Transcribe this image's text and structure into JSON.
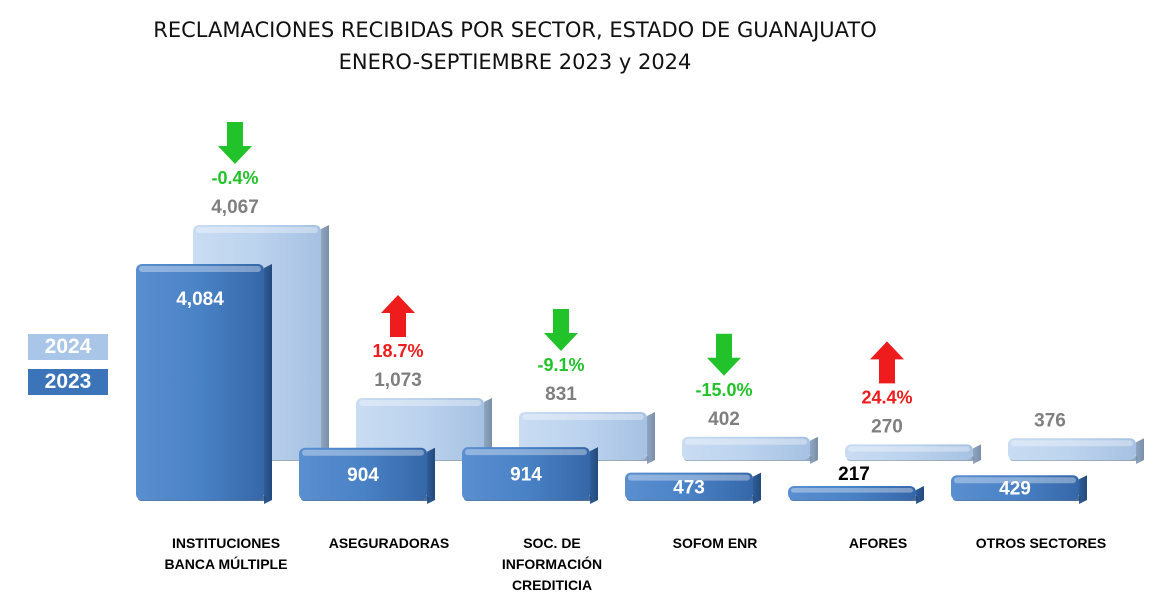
{
  "title_line1": "RECLAMACIONES RECIBIDAS POR SECTOR, ESTADO DE GUANAJUATO",
  "title_line2": "ENERO-SEPTIEMBRE 2023 y 2024",
  "legend": {
    "y2024": "2024",
    "y2023": "2023"
  },
  "colors": {
    "s2023": "#3b74b8",
    "s2024": "#b9d3ee",
    "down": "#22c22a",
    "up": "#ee1c1c"
  },
  "chart_data": {
    "type": "bar",
    "categories": [
      [
        "INSTITUCIONES",
        "BANCA MÚLTIPLE"
      ],
      [
        "ASEGURADORAS"
      ],
      [
        "SOC. DE",
        "INFORMACIÓN",
        "CREDITICIA"
      ],
      [
        "SOFOM ENR"
      ],
      [
        "AFORES"
      ],
      [
        "OTROS SECTORES"
      ]
    ],
    "series": [
      {
        "name": "2023",
        "values": [
          4084,
          904,
          914,
          473,
          217,
          429
        ],
        "labels": [
          "4,084",
          "904",
          "914",
          "473",
          "217",
          "429"
        ]
      },
      {
        "name": "2024",
        "values": [
          4067,
          1073,
          831,
          402,
          270,
          376
        ],
        "labels": [
          "4,067",
          "1,073",
          "831",
          "402",
          "270",
          "376"
        ]
      }
    ],
    "changes": [
      {
        "label": "-0.4%",
        "direction": "down"
      },
      {
        "label": "18.7%",
        "direction": "up"
      },
      {
        "label": "-9.1%",
        "direction": "down"
      },
      {
        "label": "-15.0%",
        "direction": "down"
      },
      {
        "label": "24.4%",
        "direction": "up"
      },
      {
        "label": "",
        "direction": "none"
      }
    ],
    "grid": false
  }
}
